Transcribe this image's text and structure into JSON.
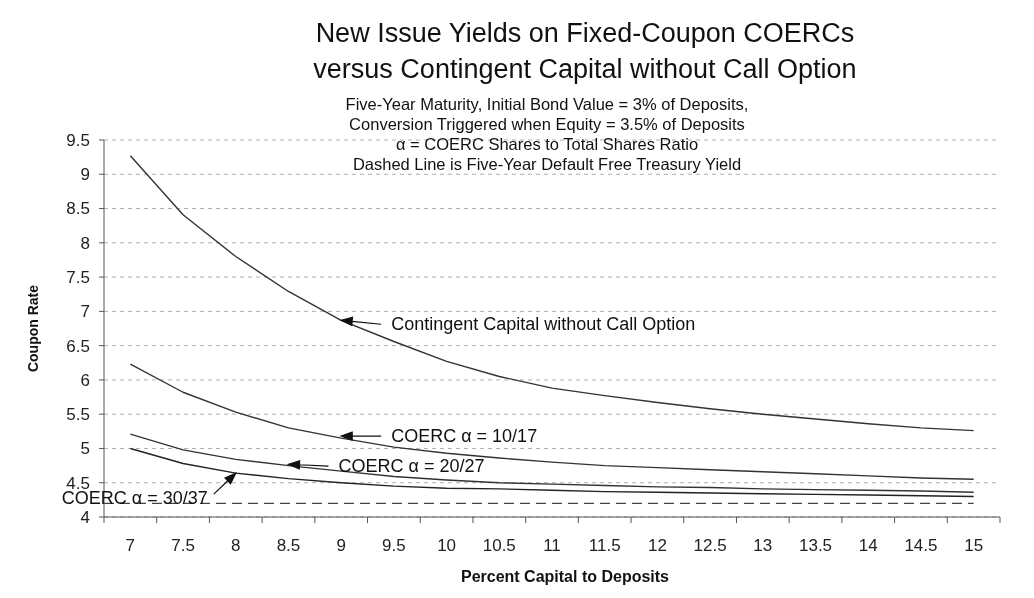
{
  "chart_data": {
    "type": "line",
    "title": "New Issue Yields on Fixed-Coupon COERCs\nversus Contingent Capital without Call Option",
    "subtitle": "Five-Year Maturity, Initial Bond Value = 3% of Deposits,\nConversion Triggered when Equity = 3.5% of Deposits\nα = COERC Shares to Total Shares Ratio\nDashed Line is Five-Year Default Free Treasury Yield",
    "xlabel": "Percent Capital to Deposits",
    "ylabel": "Coupon Rate",
    "categories": [
      "7",
      "7.5",
      "8",
      "8.5",
      "9",
      "9.5",
      "10",
      "10.5",
      "11",
      "11.5",
      "12",
      "12.5",
      "13",
      "13.5",
      "14",
      "14.5",
      "15"
    ],
    "series": [
      {
        "color": "#333333",
        "values": [
          9.27,
          8.41,
          7.8,
          7.29,
          6.87,
          6.56,
          6.27,
          6.05,
          5.88,
          5.77,
          5.67,
          5.58,
          5.5,
          5.43,
          5.36,
          5.3,
          5.26
        ]
      },
      {
        "color": "#333333",
        "values": [
          6.23,
          5.82,
          5.53,
          5.3,
          5.15,
          5.02,
          4.93,
          4.86,
          4.8,
          4.75,
          4.72,
          4.69,
          4.66,
          4.63,
          4.6,
          4.57,
          4.55
        ]
      },
      {
        "color": "#333333",
        "values": [
          5.21,
          4.98,
          4.84,
          4.75,
          4.67,
          4.59,
          4.54,
          4.5,
          4.48,
          4.46,
          4.44,
          4.43,
          4.41,
          4.4,
          4.39,
          4.38,
          4.36
        ]
      },
      {
        "color": "#222222",
        "values": [
          5.0,
          4.78,
          4.64,
          4.56,
          4.5,
          4.45,
          4.42,
          4.41,
          4.39,
          4.37,
          4.36,
          4.35,
          4.34,
          4.33,
          4.32,
          4.31,
          4.3
        ]
      }
    ],
    "ylim": [
      4,
      9.5
    ],
    "yticks": [
      4,
      4.5,
      5,
      5.5,
      6,
      6.5,
      7,
      7.5,
      8,
      8.5,
      9,
      9.5
    ],
    "grid": "y",
    "legend": false,
    "ref_lines": [
      {
        "axis": "y",
        "value": 4.2,
        "line_style": "dashed",
        "color": "#444444"
      }
    ],
    "annotations": [
      {
        "text": "Contingent Capital without Call Option",
        "x": "9",
        "y": 6.87
      },
      {
        "text": "COERC α = 10/17",
        "x": "9",
        "y": 5.18
      },
      {
        "text": "COERC α = 20/27",
        "x": "8.5",
        "y": 4.77
      },
      {
        "text": "COERC α = 30/37",
        "x": "8",
        "y": 4.64
      }
    ]
  }
}
